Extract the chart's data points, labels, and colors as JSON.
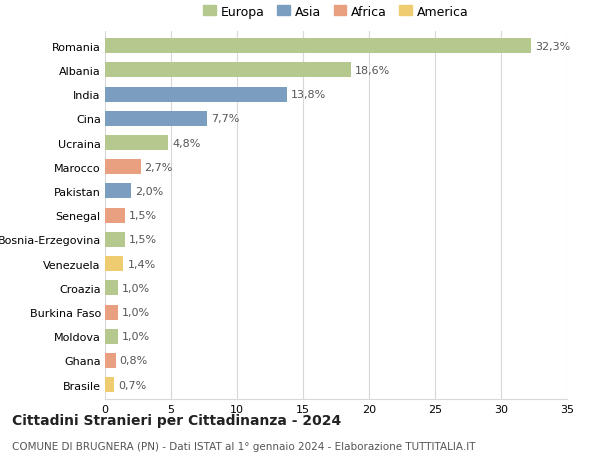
{
  "countries": [
    "Romania",
    "Albania",
    "India",
    "Cina",
    "Ucraina",
    "Marocco",
    "Pakistan",
    "Senegal",
    "Bosnia-Erzegovina",
    "Venezuela",
    "Croazia",
    "Burkina Faso",
    "Moldova",
    "Ghana",
    "Brasile"
  ],
  "values": [
    32.3,
    18.6,
    13.8,
    7.7,
    4.8,
    2.7,
    2.0,
    1.5,
    1.5,
    1.4,
    1.0,
    1.0,
    1.0,
    0.8,
    0.7
  ],
  "labels": [
    "32,3%",
    "18,6%",
    "13,8%",
    "7,7%",
    "4,8%",
    "2,7%",
    "2,0%",
    "1,5%",
    "1,5%",
    "1,4%",
    "1,0%",
    "1,0%",
    "1,0%",
    "0,8%",
    "0,7%"
  ],
  "continents": [
    "Europa",
    "Europa",
    "Asia",
    "Asia",
    "Europa",
    "Africa",
    "Asia",
    "Africa",
    "Europa",
    "America",
    "Europa",
    "Africa",
    "Europa",
    "Africa",
    "America"
  ],
  "colors": {
    "Europa": "#b5c98e",
    "Asia": "#7b9dc0",
    "Africa": "#e8a080",
    "America": "#f0cc70"
  },
  "legend_order": [
    "Europa",
    "Asia",
    "Africa",
    "America"
  ],
  "title_line1": "Cittadini Stranieri per Cittadinanza - 2024",
  "title_line2": "COMUNE DI BRUGNERA (PN) - Dati ISTAT al 1° gennaio 2024 - Elaborazione TUTTITALIA.IT",
  "xlim": [
    0,
    35
  ],
  "xticks": [
    0,
    5,
    10,
    15,
    20,
    25,
    30,
    35
  ],
  "background_color": "#ffffff",
  "grid_color": "#d8d8d8",
  "bar_height": 0.62,
  "label_fontsize": 8,
  "tick_fontsize": 8,
  "title1_fontsize": 10,
  "title2_fontsize": 7.5
}
